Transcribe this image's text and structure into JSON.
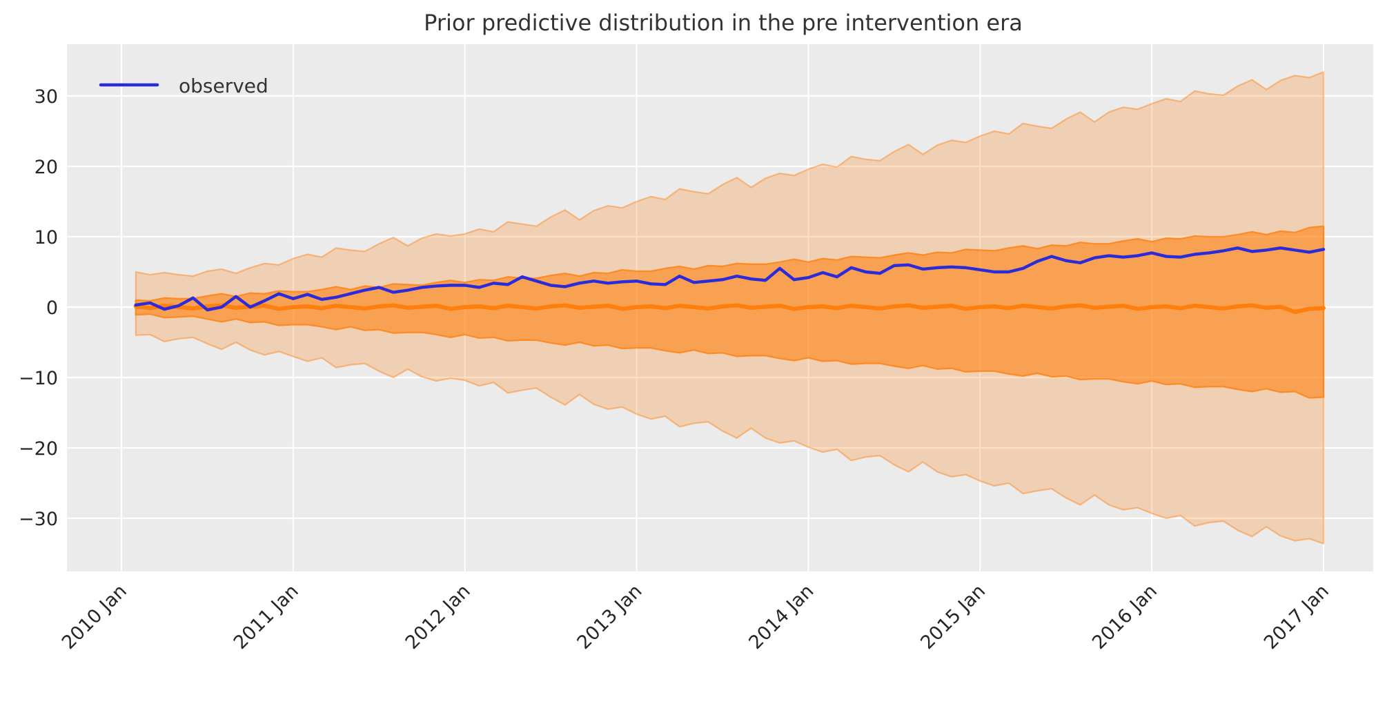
{
  "chart_data": {
    "type": "line",
    "title": "Prior predictive distribution in the pre intervention era",
    "xlabel": "",
    "ylabel": "",
    "x_start": "2010-02",
    "x_end": "2017-01",
    "x_freq": "monthly",
    "n_points": 84,
    "xtick_labels": [
      "2010 Jan",
      "2011 Jan",
      "2012 Jan",
      "2013 Jan",
      "2014 Jan",
      "2015 Jan",
      "2016 Jan",
      "2017 Jan"
    ],
    "ytick_values": [
      30,
      20,
      10,
      0,
      -10,
      -20,
      -30
    ],
    "ytick_labels": [
      "30",
      "20",
      "10",
      "0",
      "−10",
      "−20",
      "−30"
    ],
    "ylim": [
      -37.5,
      37.4
    ],
    "grid": true,
    "legend": {
      "position": "upper-left",
      "entries": [
        {
          "label": "observed",
          "color": "#2b2bd9"
        }
      ]
    },
    "series": [
      {
        "name": "observed",
        "values": [
          0.3,
          0.6,
          -0.3,
          0.2,
          1.3,
          -0.4,
          0.0,
          1.5,
          0.0,
          0.9,
          1.9,
          1.2,
          1.8,
          1.1,
          1.4,
          1.9,
          2.4,
          2.8,
          2.1,
          2.4,
          2.8,
          3.0,
          3.1,
          3.1,
          2.8,
          3.4,
          3.2,
          4.3,
          3.7,
          3.1,
          2.9,
          3.4,
          3.7,
          3.4,
          3.6,
          3.7,
          3.3,
          3.2,
          4.4,
          3.5,
          3.7,
          3.9,
          4.4,
          4.0,
          3.8,
          5.5,
          3.9,
          4.2,
          4.9,
          4.3,
          5.6,
          5.0,
          4.8,
          5.9,
          6.0,
          5.4,
          5.6,
          5.7,
          5.6,
          5.3,
          5.0,
          5.0,
          5.5,
          6.5,
          7.2,
          6.6,
          6.3,
          7.0,
          7.3,
          7.1,
          7.3,
          7.7,
          7.2,
          7.1,
          7.5,
          7.7,
          8.0,
          8.4,
          7.9,
          8.1,
          8.4,
          8.1,
          7.8,
          8.2
        ]
      },
      {
        "name": "prior-median",
        "values": [
          0.1,
          -0.15,
          0.2,
          0.0,
          -0.2,
          0.1,
          0.25,
          -0.1,
          0.05,
          0.2,
          -0.25,
          0.0,
          0.1,
          -0.15,
          0.2,
          0.0,
          -0.2,
          0.1,
          0.25,
          -0.1,
          0.05,
          0.2,
          -0.25,
          0.0,
          0.1,
          -0.15,
          0.2,
          0.0,
          -0.2,
          0.1,
          0.25,
          -0.1,
          0.05,
          0.2,
          -0.25,
          0.0,
          0.1,
          -0.15,
          0.2,
          0.0,
          -0.2,
          0.1,
          0.25,
          -0.1,
          0.05,
          0.2,
          -0.25,
          0.0,
          0.1,
          -0.15,
          0.2,
          0.0,
          -0.2,
          0.1,
          0.25,
          -0.1,
          0.05,
          0.2,
          -0.25,
          0.0,
          0.1,
          -0.15,
          0.2,
          0.0,
          -0.2,
          0.1,
          0.25,
          -0.1,
          0.05,
          0.2,
          -0.25,
          0.0,
          0.1,
          -0.15,
          0.2,
          0.0,
          -0.2,
          0.1,
          0.25,
          -0.1,
          0.05,
          -0.7,
          -0.25,
          -0.15
        ]
      }
    ],
    "bands": [
      {
        "name": "outer-credible-band",
        "upper": [
          5.0,
          4.6,
          4.9,
          4.6,
          4.4,
          5.1,
          5.4,
          4.8,
          5.6,
          6.2,
          6.0,
          6.9,
          7.5,
          7.1,
          8.4,
          8.1,
          7.9,
          9.0,
          9.9,
          8.7,
          9.8,
          10.4,
          10.1,
          10.4,
          11.1,
          10.7,
          12.1,
          11.8,
          11.5,
          12.8,
          13.8,
          12.4,
          13.7,
          14.4,
          14.1,
          15.0,
          15.7,
          15.3,
          16.8,
          16.4,
          16.1,
          17.4,
          18.4,
          17.0,
          18.3,
          19.0,
          18.7,
          19.6,
          20.3,
          19.9,
          21.4,
          21.0,
          20.8,
          22.1,
          23.1,
          21.7,
          23.0,
          23.7,
          23.4,
          24.3,
          25.0,
          24.6,
          26.1,
          25.7,
          25.4,
          26.7,
          27.7,
          26.3,
          27.7,
          28.4,
          28.1,
          28.9,
          29.6,
          29.2,
          30.7,
          30.3,
          30.1,
          31.4,
          32.3,
          30.9,
          32.2,
          32.9,
          32.6,
          33.4
        ],
        "lower": [
          -4.0,
          -3.9,
          -4.9,
          -4.5,
          -4.3,
          -5.2,
          -6.0,
          -5.0,
          -6.1,
          -6.8,
          -6.3,
          -7.0,
          -7.7,
          -7.2,
          -8.6,
          -8.2,
          -8.0,
          -9.1,
          -10.0,
          -8.8,
          -9.9,
          -10.5,
          -10.1,
          -10.4,
          -11.2,
          -10.7,
          -12.2,
          -11.8,
          -11.5,
          -12.8,
          -13.9,
          -12.4,
          -13.8,
          -14.5,
          -14.2,
          -15.2,
          -15.9,
          -15.5,
          -17.0,
          -16.5,
          -16.3,
          -17.6,
          -18.6,
          -17.2,
          -18.6,
          -19.3,
          -19.0,
          -19.9,
          -20.6,
          -20.2,
          -21.8,
          -21.3,
          -21.1,
          -22.4,
          -23.4,
          -22.0,
          -23.4,
          -24.1,
          -23.8,
          -24.7,
          -25.4,
          -25.0,
          -26.5,
          -26.1,
          -25.8,
          -27.1,
          -28.1,
          -26.7,
          -28.1,
          -28.8,
          -28.5,
          -29.3,
          -30.0,
          -29.6,
          -31.1,
          -30.6,
          -30.4,
          -31.7,
          -32.6,
          -31.2,
          -32.5,
          -33.2,
          -32.9,
          -33.6
        ]
      },
      {
        "name": "inner-credible-band",
        "upper": [
          1.0,
          0.9,
          1.3,
          1.2,
          1.2,
          1.6,
          1.9,
          1.5,
          2.0,
          1.9,
          2.3,
          2.2,
          2.2,
          2.5,
          2.9,
          2.5,
          3.0,
          2.8,
          3.3,
          3.2,
          3.1,
          3.5,
          3.8,
          3.5,
          3.9,
          3.8,
          4.3,
          4.1,
          4.1,
          4.5,
          4.8,
          4.4,
          4.9,
          4.8,
          5.3,
          5.1,
          5.1,
          5.5,
          5.8,
          5.4,
          5.9,
          5.8,
          6.2,
          6.1,
          6.1,
          6.4,
          6.8,
          6.4,
          6.9,
          6.7,
          7.2,
          7.1,
          7.0,
          7.4,
          7.7,
          7.4,
          7.8,
          7.7,
          8.2,
          8.1,
          8.0,
          8.4,
          8.7,
          8.3,
          8.8,
          8.7,
          9.2,
          9.0,
          9.0,
          9.4,
          9.7,
          9.3,
          9.8,
          9.7,
          10.1,
          10.0,
          10.0,
          10.3,
          10.7,
          10.3,
          10.8,
          10.6,
          11.3,
          11.5
        ],
        "lower": [
          -1.1,
          -1.0,
          -1.5,
          -1.4,
          -1.3,
          -1.7,
          -2.1,
          -1.7,
          -2.2,
          -2.1,
          -2.6,
          -2.5,
          -2.5,
          -2.8,
          -3.2,
          -2.8,
          -3.3,
          -3.2,
          -3.7,
          -3.6,
          -3.6,
          -3.9,
          -4.3,
          -3.9,
          -4.4,
          -4.3,
          -4.8,
          -4.7,
          -4.7,
          -5.1,
          -5.4,
          -5.0,
          -5.5,
          -5.4,
          -5.9,
          -5.8,
          -5.8,
          -6.2,
          -6.5,
          -6.1,
          -6.6,
          -6.5,
          -7.0,
          -6.9,
          -6.9,
          -7.3,
          -7.6,
          -7.2,
          -7.7,
          -7.6,
          -8.1,
          -8.0,
          -8.0,
          -8.4,
          -8.7,
          -8.3,
          -8.8,
          -8.7,
          -9.2,
          -9.1,
          -9.1,
          -9.5,
          -9.8,
          -9.4,
          -9.9,
          -9.8,
          -10.3,
          -10.2,
          -10.2,
          -10.6,
          -10.9,
          -10.5,
          -11.0,
          -10.9,
          -11.4,
          -11.3,
          -11.3,
          -11.7,
          -12.0,
          -11.6,
          -12.1,
          -12.0,
          -12.9,
          -12.8
        ]
      }
    ],
    "style": {
      "figure_bg": "#ffffff",
      "plot_bg": "#ebebeb",
      "grid_color": "#ffffff",
      "band_color": "#ff7f0e",
      "outer_band_fill_alpha": 0.25,
      "outer_band_edge_alpha": 0.45,
      "inner_band_fill_alpha": 0.58,
      "inner_band_edge_alpha": 0.8,
      "median_color": "#ff7f0e",
      "observed_color": "#2b2bd9",
      "text_color": "#333333",
      "tick_color": "#262626"
    }
  }
}
